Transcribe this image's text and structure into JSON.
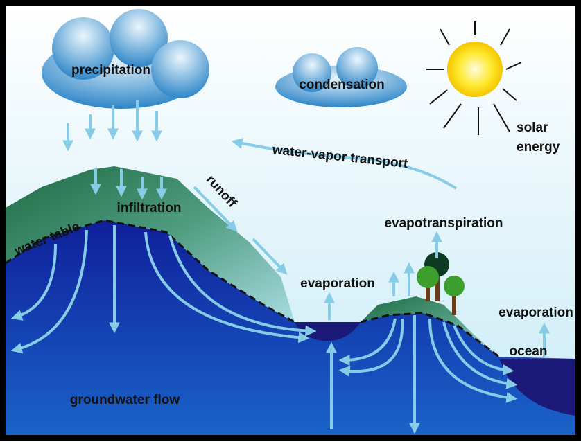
{
  "labels": {
    "precipitation": "precipitation",
    "condensation": "condensation",
    "solar_energy": [
      "solar",
      "energy"
    ],
    "water_vapor_transport": "water-vapor transport",
    "runoff": "runoff",
    "infiltration": "infiltration",
    "water_table": "water table",
    "evapotranspiration": "evapotranspiration",
    "evaporation_lake": "evaporation",
    "evaporation_ocean": "evaporation",
    "ocean": "ocean",
    "groundwater_flow": "groundwater flow"
  }
}
